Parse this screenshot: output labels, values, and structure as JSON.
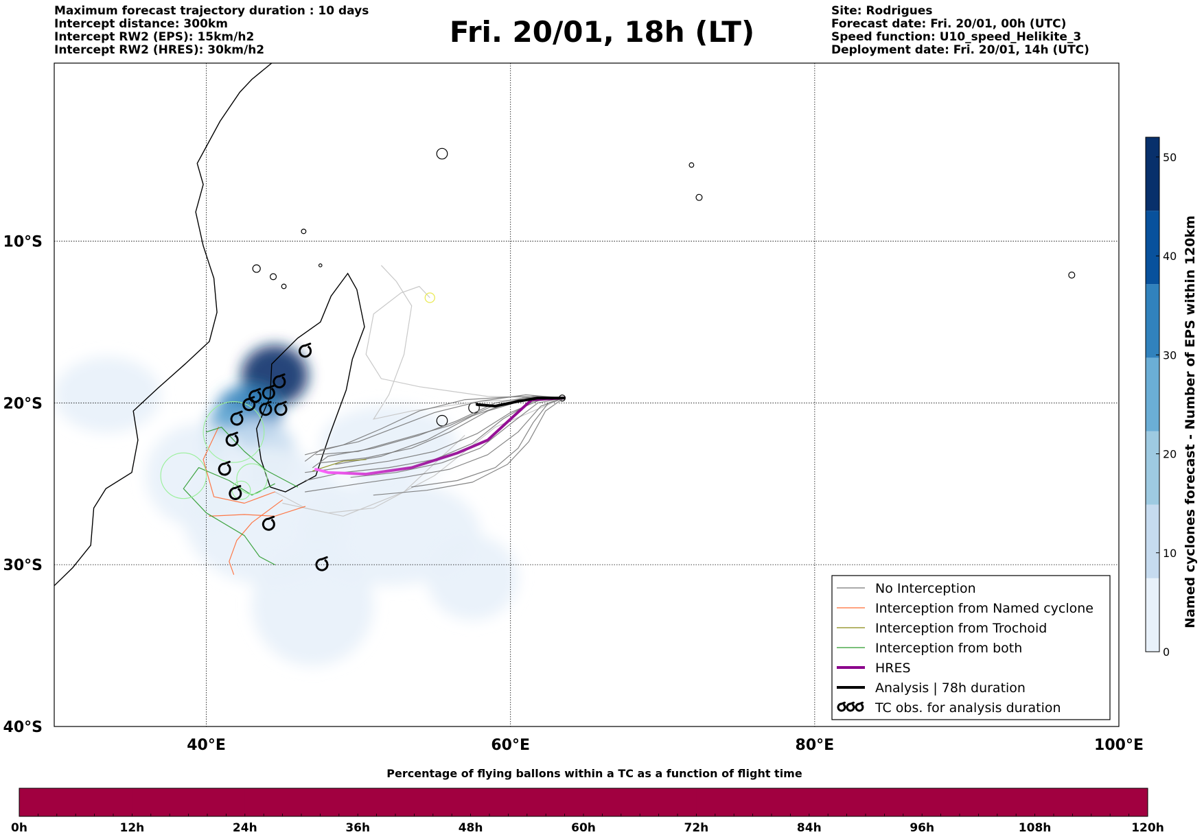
{
  "header": {
    "left_lines": [
      "Maximum forecast trajectory duration : 10 days",
      "Intercept distance: 300km",
      "Intercept RW2 (EPS):  15km/h2",
      "Intercept RW2 (HRES): 30km/h2"
    ],
    "title": "Fri. 20/01, 18h (LT)",
    "right_lines": [
      "Site: Rodrigues",
      "Forecast date: Fri. 20/01, 00h (UTC)",
      "Speed function: U10_speed_Helikite_3",
      "Deployment date: Fri. 20/01, 14h (UTC)"
    ]
  },
  "map": {
    "lon_range": [
      30,
      100
    ],
    "lat_range": [
      -40,
      1
    ],
    "lon_ticks": [
      {
        "value": 40,
        "label": "40°E"
      },
      {
        "value": 60,
        "label": "60°E"
      },
      {
        "value": 80,
        "label": "80°E"
      },
      {
        "value": 100,
        "label": "100°E"
      }
    ],
    "lat_ticks": [
      {
        "value": -10,
        "label": "10°S"
      },
      {
        "value": -20,
        "label": "20°S"
      },
      {
        "value": -30,
        "label": "30°S"
      },
      {
        "value": -40,
        "label": "40°S"
      }
    ],
    "gridlines": true,
    "coastline": [
      [
        [
          30,
          -31.3
        ],
        [
          31.2,
          -30.2
        ],
        [
          32.4,
          -28.8
        ],
        [
          32.6,
          -26.5
        ],
        [
          33.4,
          -25.3
        ],
        [
          35.1,
          -24.3
        ],
        [
          35.5,
          -22.3
        ],
        [
          35.2,
          -20.5
        ],
        [
          36.8,
          -19.1
        ],
        [
          38.6,
          -17.6
        ],
        [
          40.2,
          -16.2
        ],
        [
          40.7,
          -14.4
        ],
        [
          40.5,
          -12.3
        ],
        [
          39.8,
          -10.3
        ],
        [
          39.3,
          -8.2
        ],
        [
          39.8,
          -6.5
        ],
        [
          39.4,
          -5.2
        ],
        [
          40.9,
          -2.6
        ],
        [
          42.2,
          -0.8
        ],
        [
          43.0,
          0.0
        ],
        [
          44.3,
          1.0
        ]
      ],
      [
        [
          44.2,
          -25.2
        ],
        [
          43.6,
          -23.5
        ],
        [
          43.3,
          -21.6
        ],
        [
          44.2,
          -19.6
        ],
        [
          44.3,
          -17.6
        ],
        [
          46.0,
          -16.0
        ],
        [
          47.5,
          -15.0
        ],
        [
          48.2,
          -13.4
        ],
        [
          49.3,
          -12.0
        ],
        [
          49.9,
          -13.0
        ],
        [
          50.4,
          -15.3
        ],
        [
          49.6,
          -17.3
        ],
        [
          49.2,
          -19.2
        ],
        [
          48.1,
          -22.0
        ],
        [
          47.2,
          -24.5
        ],
        [
          45.2,
          -25.5
        ],
        [
          44.2,
          -25.2
        ]
      ]
    ],
    "islands": [
      {
        "lon": 43.3,
        "lat": -11.7,
        "r": 0.25
      },
      {
        "lon": 44.4,
        "lat": -12.2,
        "r": 0.2
      },
      {
        "lon": 45.1,
        "lat": -12.8,
        "r": 0.15
      },
      {
        "lon": 55.5,
        "lat": -4.6,
        "r": 0.35
      },
      {
        "lon": 57.6,
        "lat": -20.3,
        "r": 0.35
      },
      {
        "lon": 55.5,
        "lat": -21.1,
        "r": 0.35
      },
      {
        "lon": 63.4,
        "lat": -19.7,
        "r": 0.2
      },
      {
        "lon": 72.4,
        "lat": -7.3,
        "r": 0.2
      },
      {
        "lon": 71.9,
        "lat": -5.3,
        "r": 0.15
      },
      {
        "lon": 96.9,
        "lat": -12.1,
        "r": 0.2
      },
      {
        "lon": 47.5,
        "lat": -11.5,
        "r": 0.1
      },
      {
        "lon": 46.4,
        "lat": -9.4,
        "r": 0.15
      }
    ],
    "density": [
      {
        "lon": 44.5,
        "lat": -18.3,
        "rx": 2.2,
        "ry": 2.0,
        "level": 46
      },
      {
        "lon": 42.8,
        "lat": -20.6,
        "rx": 2.2,
        "ry": 1.8,
        "level": 36
      },
      {
        "lon": 41.4,
        "lat": -22.1,
        "rx": 1.6,
        "ry": 2.0,
        "level": 24
      },
      {
        "lon": 43.4,
        "lat": -23.2,
        "rx": 2.5,
        "ry": 2.4,
        "level": 14
      },
      {
        "lon": 39.5,
        "lat": -24.5,
        "rx": 3.5,
        "ry": 3.4,
        "level": 5
      },
      {
        "lon": 44.0,
        "lat": -27.0,
        "rx": 5.5,
        "ry": 4.5,
        "level": 5
      },
      {
        "lon": 47.0,
        "lat": -32.5,
        "rx": 4.0,
        "ry": 4.0,
        "level": 3
      },
      {
        "lon": 52.0,
        "lat": -28.0,
        "rx": 6.0,
        "ry": 3.5,
        "level": 3
      },
      {
        "lon": 33.5,
        "lat": -19.5,
        "rx": 3.5,
        "ry": 2.5,
        "level": 3
      },
      {
        "lon": 52.0,
        "lat": -22.5,
        "rx": 4.5,
        "ry": 2.5,
        "level": 3
      },
      {
        "lon": 57.5,
        "lat": -30.8,
        "rx": 3.0,
        "ry": 2.8,
        "level": 2
      }
    ],
    "tc_observations": [
      {
        "lon": 46.5,
        "lat": -16.8
      },
      {
        "lon": 44.8,
        "lat": -18.7
      },
      {
        "lon": 44.1,
        "lat": -19.4
      },
      {
        "lon": 43.2,
        "lat": -19.6
      },
      {
        "lon": 42.8,
        "lat": -20.1
      },
      {
        "lon": 43.9,
        "lat": -20.4
      },
      {
        "lon": 44.9,
        "lat": -20.4
      },
      {
        "lon": 42.0,
        "lat": -21.0
      },
      {
        "lon": 41.7,
        "lat": -22.3
      },
      {
        "lon": 41.2,
        "lat": -24.1
      },
      {
        "lon": 41.9,
        "lat": -25.6
      },
      {
        "lon": 44.1,
        "lat": -27.5
      },
      {
        "lon": 47.6,
        "lat": -30.0
      }
    ]
  },
  "chart_data": {
    "type": "line",
    "series": [
      {
        "name": "No Interception",
        "color": "#777777",
        "tracks": [
          [
            [
              63.5,
              -19.7
            ],
            [
              61.5,
              -19.6
            ],
            [
              59.0,
              -20.0
            ],
            [
              56.5,
              -21.1
            ],
            [
              54.0,
              -22.0
            ],
            [
              51.0,
              -22.8
            ],
            [
              48.0,
              -23.3
            ],
            [
              47.0,
              -24.0
            ]
          ],
          [
            [
              63.5,
              -19.7
            ],
            [
              61.0,
              -19.8
            ],
            [
              58.5,
              -20.5
            ],
            [
              56.0,
              -21.8
            ],
            [
              53.5,
              -22.8
            ],
            [
              50.5,
              -23.4
            ],
            [
              47.5,
              -23.7
            ]
          ],
          [
            [
              63.5,
              -19.7
            ],
            [
              61.5,
              -19.9
            ],
            [
              59.5,
              -21.0
            ],
            [
              57.5,
              -22.5
            ],
            [
              55.0,
              -23.5
            ],
            [
              52.0,
              -24.0
            ],
            [
              49.0,
              -24.3
            ],
            [
              46.5,
              -24.8
            ]
          ],
          [
            [
              63.5,
              -19.7
            ],
            [
              62.0,
              -20.2
            ],
            [
              60.5,
              -21.8
            ],
            [
              58.5,
              -23.2
            ],
            [
              56.0,
              -24.1
            ],
            [
              53.0,
              -24.6
            ],
            [
              50.0,
              -25.0
            ],
            [
              46.5,
              -25.5
            ]
          ],
          [
            [
              63.5,
              -19.7
            ],
            [
              62.3,
              -20.5
            ],
            [
              61.2,
              -22.4
            ],
            [
              59.8,
              -23.8
            ],
            [
              57.5,
              -24.9
            ],
            [
              54.5,
              -25.4
            ],
            [
              51.0,
              -25.7
            ]
          ],
          [
            [
              63.5,
              -19.7
            ],
            [
              61.0,
              -19.5
            ],
            [
              58.0,
              -19.9
            ],
            [
              55.0,
              -20.6
            ],
            [
              52.5,
              -21.5
            ],
            [
              50.0,
              -22.4
            ],
            [
              47.5,
              -22.9
            ],
            [
              46.5,
              -23.6
            ]
          ],
          [
            [
              63.5,
              -19.7
            ],
            [
              60.8,
              -19.7
            ],
            [
              57.5,
              -20.8
            ],
            [
              54.5,
              -22.3
            ],
            [
              51.5,
              -23.3
            ],
            [
              48.5,
              -23.8
            ]
          ],
          [
            [
              63.5,
              -19.7
            ],
            [
              61.5,
              -19.7
            ],
            [
              58.8,
              -20.2
            ],
            [
              56.0,
              -21.4
            ],
            [
              53.0,
              -22.2
            ],
            [
              50.0,
              -23.0
            ],
            [
              47.2,
              -23.2
            ]
          ],
          [
            [
              63.5,
              -19.7
            ],
            [
              62.0,
              -19.8
            ],
            [
              60.0,
              -20.6
            ],
            [
              57.8,
              -21.9
            ],
            [
              55.0,
              -23.0
            ],
            [
              52.0,
              -23.6
            ],
            [
              49.0,
              -24.0
            ],
            [
              46.5,
              -24.3
            ]
          ],
          [
            [
              63.5,
              -19.7
            ],
            [
              61.8,
              -20.0
            ],
            [
              60.0,
              -21.3
            ],
            [
              58.0,
              -22.8
            ],
            [
              55.5,
              -23.7
            ],
            [
              52.5,
              -24.3
            ],
            [
              49.5,
              -24.6
            ]
          ],
          [
            [
              63.5,
              -19.7
            ],
            [
              62.5,
              -20.0
            ],
            [
              61.5,
              -21.2
            ],
            [
              60.5,
              -22.8
            ],
            [
              59.0,
              -24.0
            ],
            [
              56.5,
              -24.8
            ],
            [
              53.5,
              -25.2
            ]
          ],
          [
            [
              63.5,
              -19.7
            ],
            [
              60.5,
              -19.6
            ],
            [
              57.0,
              -19.8
            ],
            [
              54.0,
              -20.5
            ],
            [
              51.5,
              -21.6
            ],
            [
              49.0,
              -22.6
            ],
            [
              46.5,
              -23.2
            ]
          ]
        ]
      },
      {
        "name": "Interception from Named cyclone",
        "color": "#ff6a33",
        "tracks": [
          [
            [
              44.5,
              -25.5
            ],
            [
              42.5,
              -26.2
            ],
            [
              40.5,
              -25.8
            ],
            [
              39.8,
              -23.5
            ],
            [
              40.8,
              -21.5
            ]
          ],
          [
            [
              45.0,
              -26.0
            ],
            [
              43.0,
              -27.4
            ],
            [
              42.0,
              -28.5
            ],
            [
              41.5,
              -29.8
            ],
            [
              41.8,
              -30.6
            ]
          ],
          [
            [
              46.5,
              -26.4
            ],
            [
              44.5,
              -27.0
            ],
            [
              42.5,
              -26.9
            ],
            [
              40.2,
              -27.0
            ]
          ]
        ]
      },
      {
        "name": "Interception from Trochoid",
        "color": "#888811",
        "tracks": [
          [
            [
              47.0,
              -24.2
            ],
            [
              49.0,
              -23.6
            ],
            [
              50.5,
              -23.5
            ]
          ]
        ]
      },
      {
        "name": "Interception from both",
        "color": "#2a9a2a",
        "tracks": [
          [
            [
              44.5,
              -25.0
            ],
            [
              43.0,
              -25.7
            ],
            [
              41.5,
              -24.8
            ],
            [
              39.5,
              -24.0
            ],
            [
              38.5,
              -25.3
            ],
            [
              40.0,
              -26.8
            ],
            [
              42.5,
              -28.2
            ],
            [
              43.5,
              -29.5
            ],
            [
              44.5,
              -30.0
            ]
          ],
          [
            [
              46.0,
              -25.2
            ],
            [
              44.0,
              -24.2
            ],
            [
              42.5,
              -23.0
            ],
            [
              41.0,
              -21.5
            ],
            [
              40.0,
              -21.8
            ]
          ]
        ]
      },
      {
        "name": "HRES",
        "color": "#8b008b",
        "tracks": [
          [
            [
              63.5,
              -19.7
            ],
            [
              61.4,
              -19.8
            ],
            [
              60.0,
              -21.0
            ],
            [
              58.5,
              -22.3
            ],
            [
              56.5,
              -23.1
            ],
            [
              53.5,
              -24.0
            ],
            [
              50.5,
              -24.4
            ],
            [
              48.0,
              -24.3
            ],
            [
              47.2,
              -24.1
            ]
          ]
        ]
      },
      {
        "name": "Analysis | 78h duration",
        "color": "#000000",
        "tracks": [
          [
            [
              57.8,
              -20.1
            ],
            [
              59.0,
              -20.2
            ],
            [
              60.5,
              -19.9
            ],
            [
              61.8,
              -19.7
            ],
            [
              63.5,
              -19.7
            ]
          ]
        ]
      }
    ],
    "light_tracks": [
      [
        [
          63.5,
          -19.7
        ],
        [
          58.5,
          -19.6
        ],
        [
          54.0,
          -19.0
        ],
        [
          51.5,
          -18.5
        ],
        [
          50.5,
          -17.0
        ],
        [
          51.0,
          -14.5
        ],
        [
          52.8,
          -13.2
        ],
        [
          54.0,
          -12.8
        ],
        [
          54.7,
          -13.5
        ]
      ],
      [
        [
          63.5,
          -19.7
        ],
        [
          58.0,
          -19.9
        ],
        [
          53.5,
          -20.5
        ],
        [
          51.0,
          -21.0
        ],
        [
          52.0,
          -19.5
        ],
        [
          53.0,
          -17.0
        ],
        [
          53.5,
          -14.0
        ],
        [
          52.5,
          -12.5
        ],
        [
          51.5,
          -11.5
        ]
      ],
      [
        [
          63.5,
          -19.7
        ],
        [
          59.0,
          -21.5
        ],
        [
          55.0,
          -24.5
        ],
        [
          51.0,
          -26.5
        ],
        [
          48.0,
          -26.8
        ],
        [
          45.0,
          -26.2
        ]
      ],
      [
        [
          57.0,
          -22.0
        ],
        [
          53.0,
          -25.5
        ],
        [
          49.0,
          -27.0
        ],
        [
          46.5,
          -26.5
        ],
        [
          44.5,
          -25.5
        ]
      ]
    ],
    "light_tracks_color": "#c8c8c8",
    "observation_legend": "TC obs. for analysis duration",
    "eps_colorbar": {
      "label": "Named cyclones forecast - Number of EPS within 120km",
      "min": 0,
      "max": 52,
      "ticks": [
        0,
        10,
        20,
        30,
        40,
        50
      ],
      "colors": [
        "#e8f1fa",
        "#c6dbef",
        "#9ecae1",
        "#6baed6",
        "#3182bd",
        "#08519c",
        "#08306b"
      ]
    },
    "flight_time_bar": {
      "title": "Percentage of flying ballons within a TC as a function of flight time",
      "ticks": [
        "0h",
        "12h",
        "24h",
        "36h",
        "48h",
        "60h",
        "72h",
        "84h",
        "96h",
        "108h",
        "120h"
      ],
      "max_hours": 120,
      "values": [
        100,
        100,
        100,
        100,
        100,
        100,
        100,
        100,
        100,
        100,
        100
      ],
      "color": "#a10040"
    }
  }
}
